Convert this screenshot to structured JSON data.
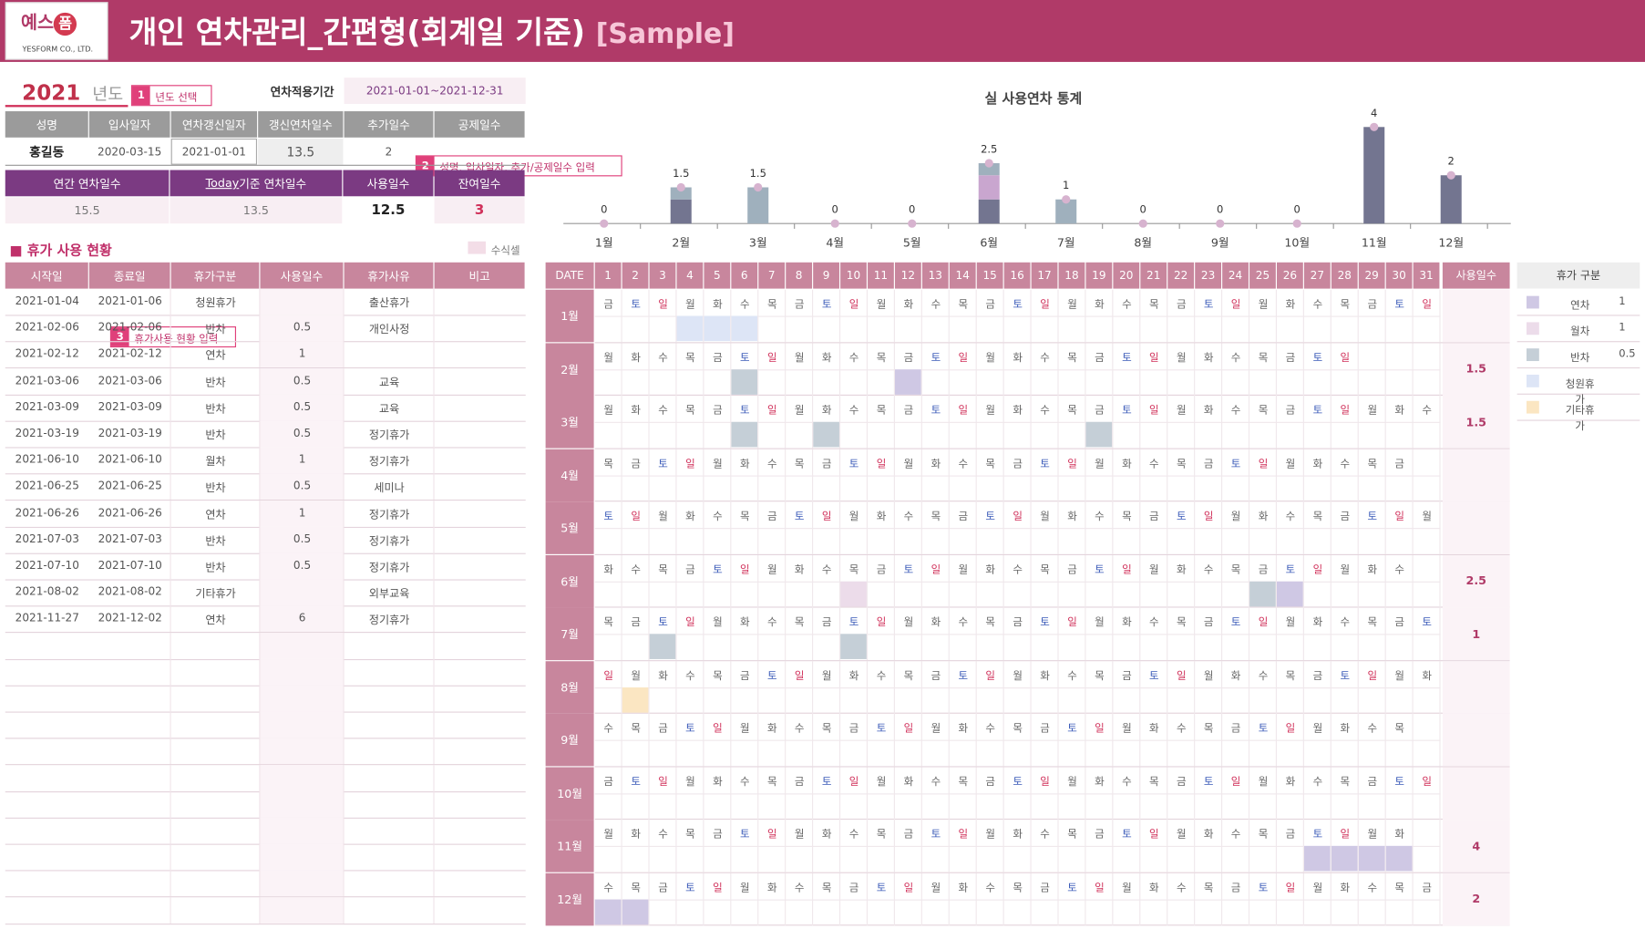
{
  "header": {
    "logo_main": "예스",
    "logo_circle": "폼",
    "logo_sub": "YESFORM CO., LTD.",
    "title": "개인 연차관리_간편형(회계일 기준)",
    "sample": "[Sample]"
  },
  "year": {
    "value": "2021",
    "suffix": "년도",
    "tag_num": "1",
    "tag_text": "년도 선택"
  },
  "period": {
    "label": "연차적용기간",
    "value": "2021-01-01~2021-12-31"
  },
  "info": {
    "headers": [
      "성명",
      "입사일자",
      "연차갱신일자",
      "갱신연차일수",
      "추가일수",
      "공제일수"
    ],
    "values": [
      "홍길동",
      "2020-03-15",
      "2021-01-01",
      "13.5",
      "2",
      ""
    ]
  },
  "tag2": {
    "num": "2",
    "text": "성명, 입사일자, 추가/공제일수 입력"
  },
  "summary": {
    "headers": [
      "연간 연차일수",
      "Today 기준 연차일수",
      "사용일수",
      "잔여일수"
    ],
    "values": [
      "15.5",
      "13.5",
      "12.5",
      "3"
    ]
  },
  "section": {
    "title": "■ 휴가 사용 현황",
    "formula_label": "수식셀"
  },
  "tag3": {
    "num": "3",
    "text": "휴가사용 현황 입력"
  },
  "leave_table": {
    "headers": [
      "시작일",
      "종료일",
      "휴가구분",
      "사용일수",
      "휴가사유",
      "비고"
    ],
    "rows": [
      [
        "2021-01-04",
        "2021-01-06",
        "청원휴가",
        "",
        "출산휴가",
        ""
      ],
      [
        "2021-02-06",
        "2021-02-06",
        "반차",
        "0.5",
        "개인사정",
        ""
      ],
      [
        "2021-02-12",
        "2021-02-12",
        "연차",
        "1",
        "",
        ""
      ],
      [
        "2021-03-06",
        "2021-03-06",
        "반차",
        "0.5",
        "교육",
        ""
      ],
      [
        "2021-03-09",
        "2021-03-09",
        "반차",
        "0.5",
        "교육",
        ""
      ],
      [
        "2021-03-19",
        "2021-03-19",
        "반차",
        "0.5",
        "정기휴가",
        ""
      ],
      [
        "2021-06-10",
        "2021-06-10",
        "월차",
        "1",
        "정기휴가",
        ""
      ],
      [
        "2021-06-25",
        "2021-06-25",
        "반차",
        "0.5",
        "세미나",
        ""
      ],
      [
        "2021-06-26",
        "2021-06-26",
        "연차",
        "1",
        "정기휴가",
        ""
      ],
      [
        "2021-07-03",
        "2021-07-03",
        "반차",
        "0.5",
        "정기휴가",
        ""
      ],
      [
        "2021-07-10",
        "2021-07-10",
        "반차",
        "0.5",
        "정기휴가",
        ""
      ],
      [
        "2021-08-02",
        "2021-08-02",
        "기타휴가",
        "",
        "외부교육",
        ""
      ],
      [
        "2021-11-27",
        "2021-12-02",
        "연차",
        "6",
        "정기휴가",
        ""
      ]
    ]
  },
  "chart_data": {
    "type": "bar",
    "title": "실 사용연차 통계",
    "categories": [
      "1월",
      "2월",
      "3월",
      "4월",
      "5월",
      "6월",
      "7월",
      "8월",
      "9월",
      "10월",
      "11월",
      "12월"
    ],
    "series": [
      {
        "name": "연차",
        "values": [
          0,
          1,
          0,
          0,
          0,
          1,
          0,
          0,
          0,
          0,
          4,
          2
        ]
      },
      {
        "name": "월차",
        "values": [
          0,
          0,
          0,
          0,
          0,
          1,
          0,
          0,
          0,
          0,
          0,
          0
        ]
      },
      {
        "name": "반차",
        "values": [
          0,
          0.5,
          1.5,
          0,
          0,
          0.5,
          1,
          0,
          0,
          0,
          0,
          0
        ]
      }
    ],
    "totals": [
      0,
      1.5,
      1.5,
      0,
      0,
      2.5,
      1,
      0,
      0,
      0,
      4,
      2
    ],
    "ylim": [
      0,
      4.5
    ]
  },
  "calendar": {
    "date_label": "DATE",
    "days": [
      "1",
      "2",
      "3",
      "4",
      "5",
      "6",
      "7",
      "8",
      "9",
      "10",
      "11",
      "12",
      "13",
      "14",
      "15",
      "16",
      "17",
      "18",
      "19",
      "20",
      "21",
      "22",
      "23",
      "24",
      "25",
      "26",
      "27",
      "28",
      "29",
      "30",
      "31"
    ],
    "sum_label": "사용일수",
    "months": [
      {
        "label": "1월",
        "dow": "금토일월화수목금토일월화수목금토일월화수목금토일월화수목금토일",
        "sum": ""
      },
      {
        "label": "2월",
        "dow": "월화수목금토일월화수목금토일월화수목금토일월화수목금토일",
        "sum": "1.5"
      },
      {
        "label": "3월",
        "dow": "월화수목금토일월화수목금토일월화수목금토일월화수목금토일월화수",
        "sum": "1.5"
      },
      {
        "label": "4월",
        "dow": "목금토일월화수목금토일월화수목금토일월화수목금토일월화수목금",
        "sum": ""
      },
      {
        "label": "5월",
        "dow": "토일월화수목금토일월화수목금토일월화수목금토일월화수목금토일월",
        "sum": ""
      },
      {
        "label": "6월",
        "dow": "화수목금토일월화수목금토일월화수목금토일월화수목금토일월화수",
        "sum": "2.5"
      },
      {
        "label": "7월",
        "dow": "목금토일월화수목금토일월화수목금토일월화수목금토일월화수목금토",
        "sum": "1"
      },
      {
        "label": "8월",
        "dow": "일월화수목금토일월화수목금토일월화수목금토일월화수목금토일월화",
        "sum": ""
      },
      {
        "label": "9월",
        "dow": "수목금토일월화수목금토일월화수목금토일월화수목금토일월화수목",
        "sum": ""
      },
      {
        "label": "10월",
        "dow": "금토일월화수목금토일월화수목금토일월화수목금토일월화수목금토일",
        "sum": ""
      },
      {
        "label": "11월",
        "dow": "월화수목금토일월화수목금토일월화수목금토일월화수목금토일월화",
        "sum": "4"
      },
      {
        "label": "12월",
        "dow": "수목금토일월화수목금토일월화수목금토일월화수목금토일월화수목금",
        "sum": "2"
      }
    ]
  },
  "legend": {
    "title": "휴가 구분",
    "items": [
      {
        "name": "연차",
        "value": "1",
        "color": "#cfc8e4"
      },
      {
        "name": "월차",
        "value": "1",
        "color": "#ecdcea"
      },
      {
        "name": "반차",
        "value": "0.5",
        "color": "#c5cfd7"
      },
      {
        "name": "청원휴가",
        "value": "",
        "color": "#dde5f6"
      },
      {
        "name": "기타휴가",
        "value": "",
        "color": "#fbe6c2"
      }
    ]
  },
  "colors": {
    "accent": "#b03a68",
    "purple": "#7b3a82",
    "pink_header": "#c8869d",
    "gray_header": "#9b9b9b",
    "bar_annual": "#737590",
    "bar_monthly": "#c9a6cf",
    "bar_half": "#9fb0bd",
    "saturday": "#3a5ab8",
    "sunday": "#d0305a"
  }
}
